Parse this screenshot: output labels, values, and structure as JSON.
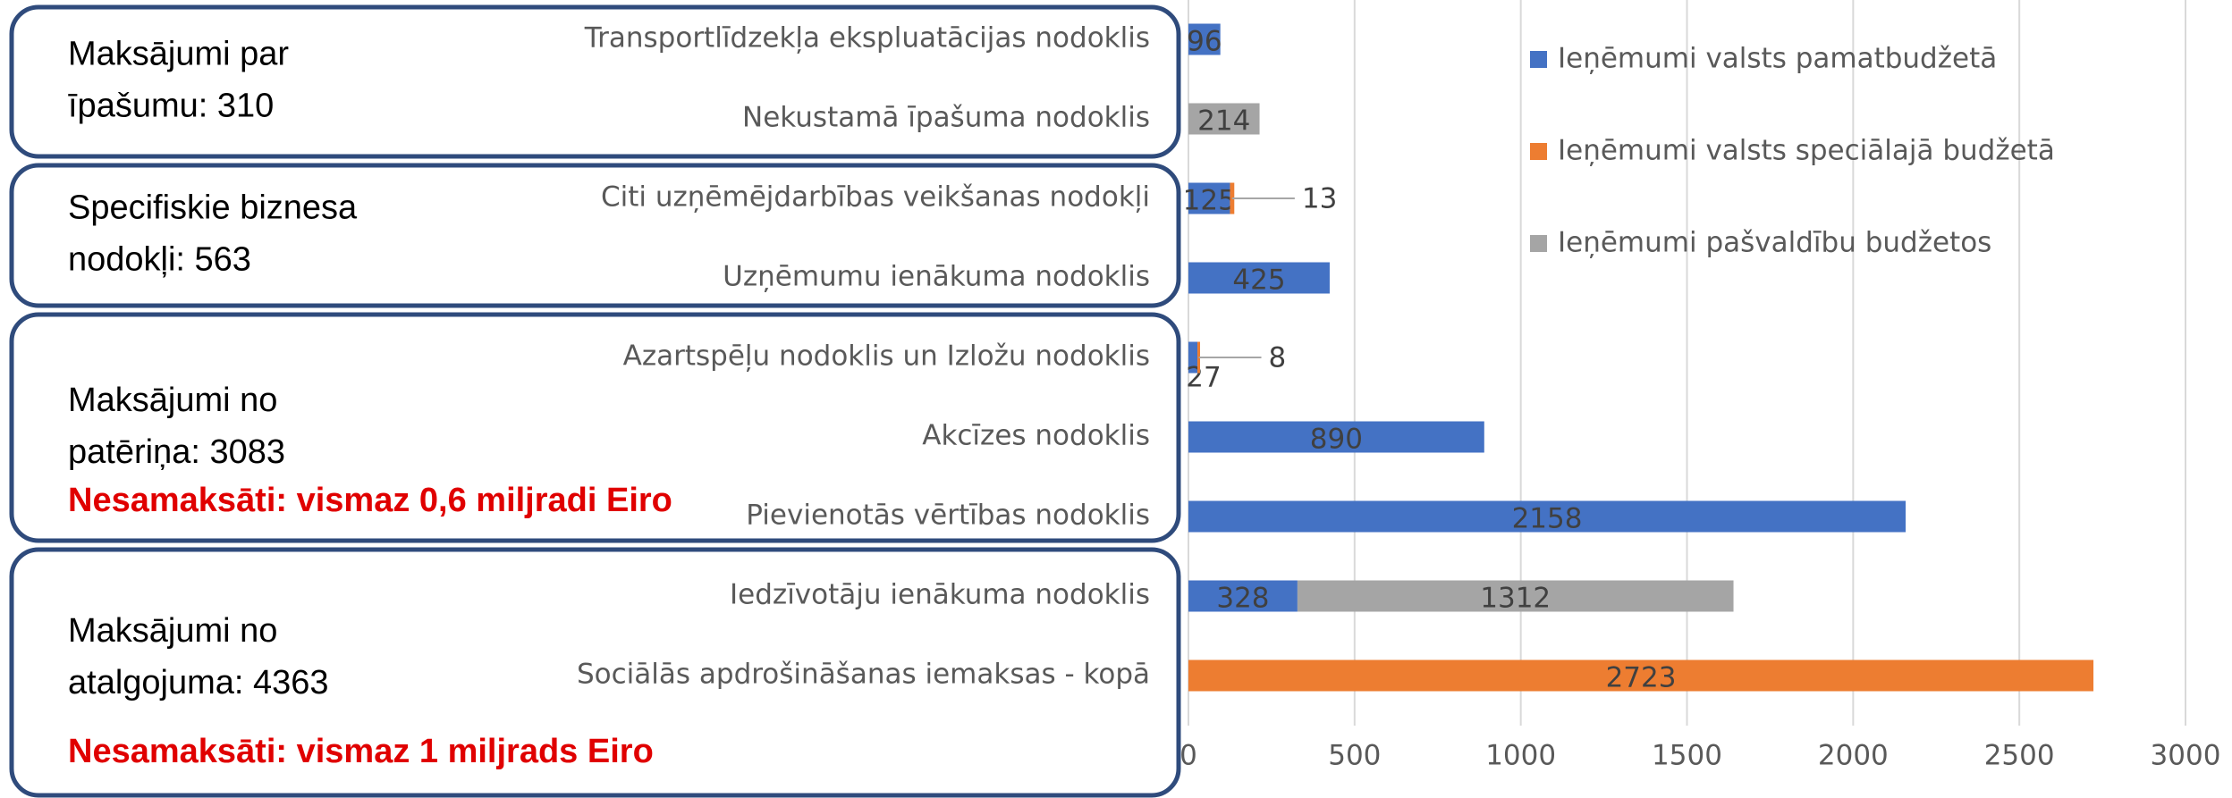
{
  "chart_data": {
    "type": "stacked-barh",
    "categories": [
      "Transportlīdzekļa ekspluatācijas nodoklis",
      "Nekustamā īpašuma nodoklis",
      "Citi uzņēmējdarbības veikšanas nodokļi",
      "Uzņēmumu ienākuma nodoklis",
      "Azartspēļu nodoklis un Izložu nodoklis",
      "Akcīzes nodoklis",
      "Pievienotās vērtības nodoklis",
      "Iedzīvotāju ienākuma nodoklis",
      "Sociālās apdrošināšanas iemaksas - kopā"
    ],
    "series": [
      {
        "name": "Ieņēmumi valsts pamatbudžetā",
        "color": "#4472c4",
        "values": [
          96,
          null,
          125,
          425,
          27,
          890,
          2158,
          328,
          null
        ]
      },
      {
        "name": "Ieņēmumi valsts speciālajā budžetā",
        "color": "#ed7d31",
        "values": [
          null,
          null,
          13,
          null,
          8,
          null,
          null,
          null,
          2723
        ]
      },
      {
        "name": "Ieņēmumi pašvaldību budžetos",
        "color": "#a5a5a5",
        "values": [
          null,
          214,
          null,
          null,
          null,
          null,
          null,
          1312,
          null
        ]
      }
    ],
    "xlim": [
      0,
      3000
    ],
    "xticks": [
      0,
      500,
      1000,
      1500,
      2000,
      2500,
      3000
    ],
    "grid": true,
    "legend": "top-right",
    "annotations": [
      {
        "lines": [
          "Maksājumi par",
          "īpašumu: 310"
        ]
      },
      {
        "lines": [
          "Specifiskie biznesa",
          "nodokļi: 563"
        ]
      },
      {
        "lines": [
          "Maksājumi no",
          "patēriņa: 3083"
        ],
        "note": "Nesamaksāti: vismaz 0,6 miljradi Eiro"
      },
      {
        "lines": [
          "Maksājumi no",
          "atalgojuma: 4363"
        ],
        "note": "Nesamaksāti: vismaz 1 miljrads Eiro"
      }
    ]
  }
}
